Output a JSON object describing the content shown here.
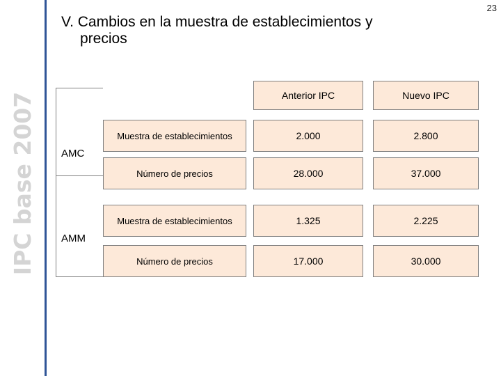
{
  "page_number": "23",
  "side_title": "IPC base 2007",
  "title": {
    "line1": "V. Cambios en la muestra de establecimientos y",
    "line2": "precios"
  },
  "columns": [
    "Anterior IPC",
    "Nuevo IPC"
  ],
  "groups": [
    {
      "label": "AMC",
      "rows": [
        {
          "label": "Muestra de establecimientos",
          "anterior": "2.000",
          "nuevo": "2.800"
        },
        {
          "label": "Número de precios",
          "anterior": "28.000",
          "nuevo": "37.000"
        }
      ]
    },
    {
      "label": "AMM",
      "rows": [
        {
          "label": "Muestra de establecimientos",
          "anterior": "1.325",
          "nuevo": "2.225"
        },
        {
          "label": "Número de precios",
          "anterior": "17.000",
          "nuevo": "30.000"
        }
      ]
    }
  ],
  "colors": {
    "box_fill": "#fde9d9",
    "box_border": "#7f7f7f",
    "accent_line": "#2f5597",
    "side_title": "#d4d4d4"
  }
}
